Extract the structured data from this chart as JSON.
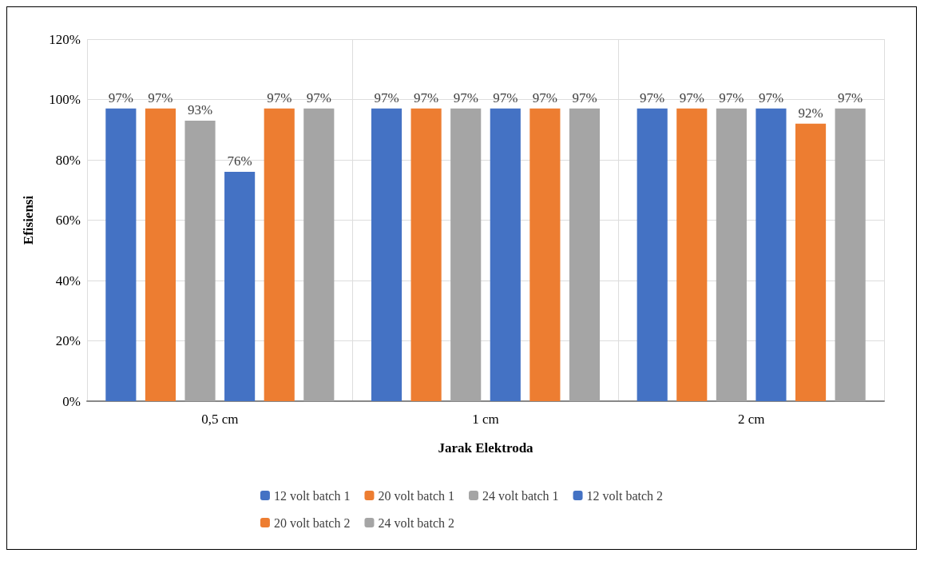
{
  "chart_data": {
    "type": "bar",
    "xlabel": "Jarak Elektroda",
    "ylabel": "Efisiensi",
    "categories": [
      "0,5 cm",
      "1 cm",
      "2 cm"
    ],
    "series": [
      {
        "name": "12 volt batch 1",
        "color": "#4472c4",
        "values": [
          97,
          97,
          97
        ],
        "value_labels": [
          "97%",
          "97%",
          "97%"
        ]
      },
      {
        "name": "20 volt batch 1",
        "color": "#ed7d31",
        "values": [
          97,
          97,
          97
        ],
        "value_labels": [
          "97%",
          "97%",
          "97%"
        ]
      },
      {
        "name": "24 volt batch 1",
        "color": "#a5a5a5",
        "values": [
          93,
          97,
          97
        ],
        "value_labels": [
          "93%",
          "97%",
          "97%"
        ]
      },
      {
        "name": "12 volt batch 2",
        "color": "#4472c4",
        "values": [
          76,
          97,
          97
        ],
        "value_labels": [
          "76%",
          "97%",
          "97%"
        ]
      },
      {
        "name": "20 volt batch 2",
        "color": "#ed7d31",
        "values": [
          97,
          97,
          92
        ],
        "value_labels": [
          "97%",
          "97%",
          "92%"
        ]
      },
      {
        "name": "24 volt batch 2",
        "color": "#a5a5a5",
        "values": [
          97,
          97,
          97
        ],
        "value_labels": [
          "97%",
          "97%",
          "97%"
        ]
      }
    ],
    "ylim": [
      0,
      120
    ],
    "yticks": [
      {
        "value": 0,
        "label": "0%"
      },
      {
        "value": 20,
        "label": "20%"
      },
      {
        "value": 40,
        "label": "40%"
      },
      {
        "value": 60,
        "label": "60%"
      },
      {
        "value": 80,
        "label": "80%"
      },
      {
        "value": 100,
        "label": "100%"
      },
      {
        "value": 120,
        "label": "120%"
      }
    ],
    "grid": true,
    "legend": "bottom"
  }
}
